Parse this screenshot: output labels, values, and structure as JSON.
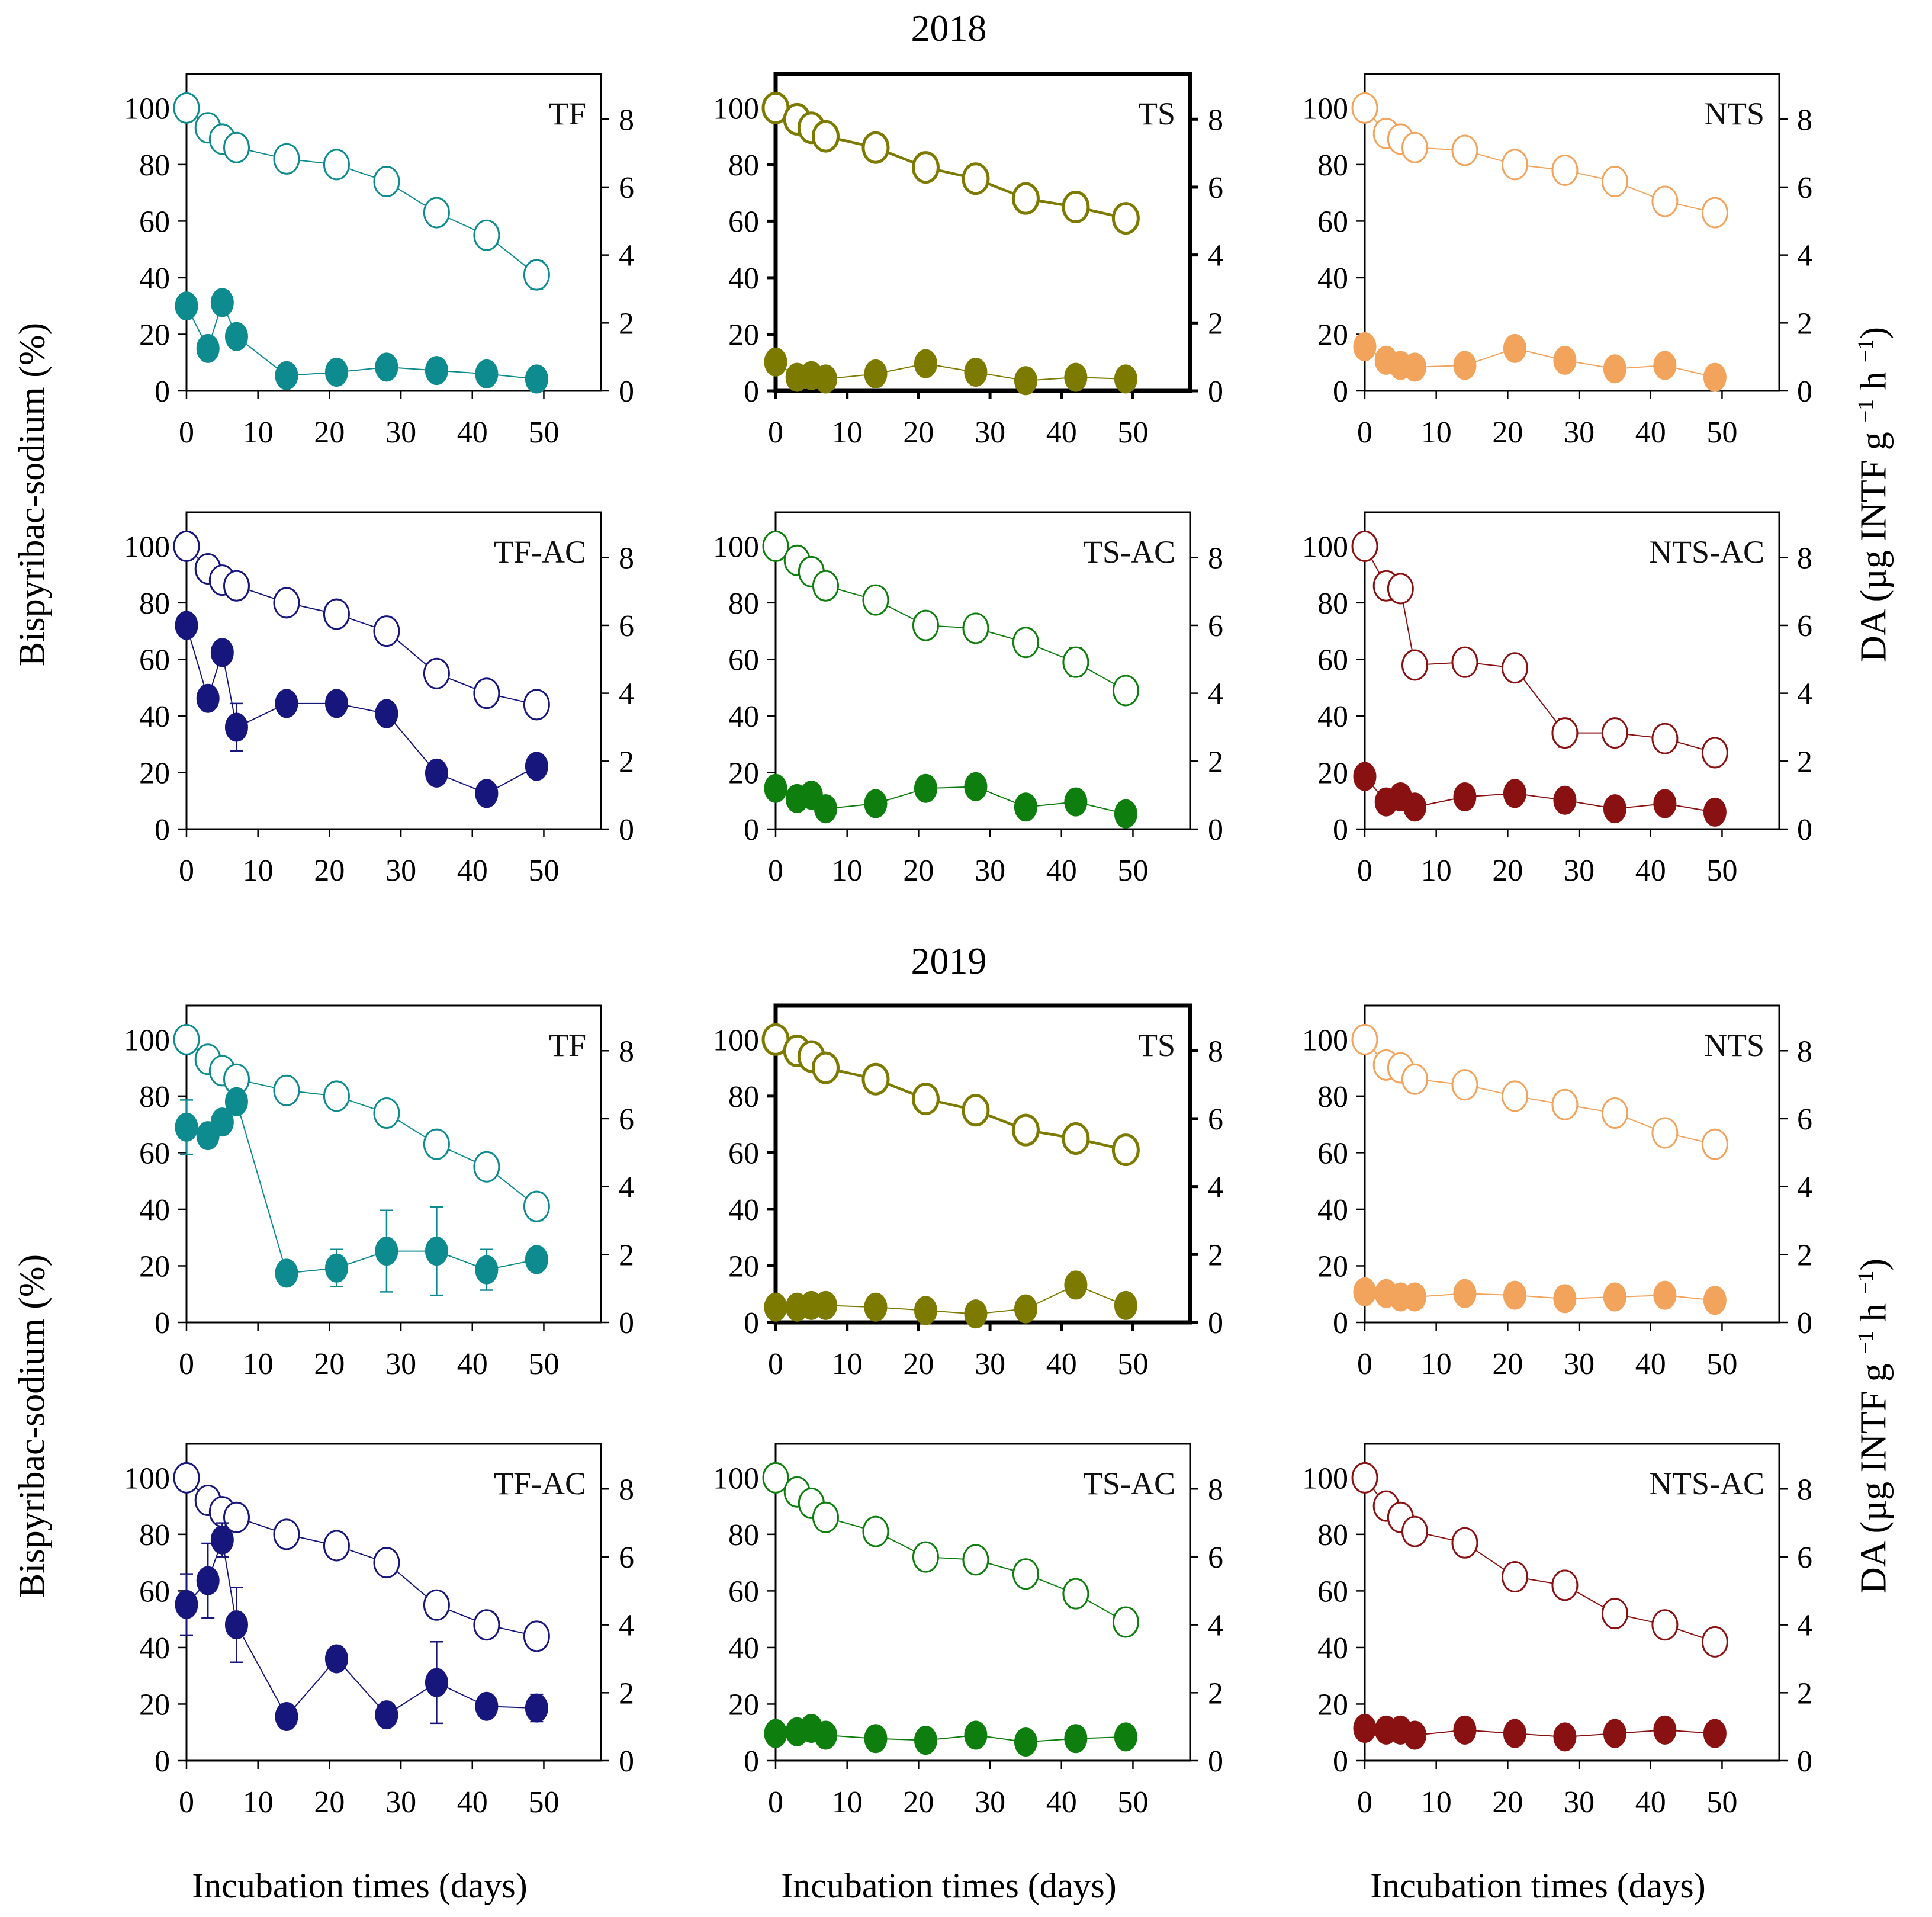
{
  "figure": {
    "x_axis_title": "Incubation times (days)",
    "left_axis_title": "Bispyribac-sodium (%)",
    "right_axis_title": "DA (µg INTF g −1 h −1)"
  },
  "chart_data": {
    "type": "line",
    "x_label": "Incubation times (days)",
    "y_left_label": "Bispyribac-sodium (%)",
    "right_label_parts": {
      "p1": "DA (µg INTF g ",
      "s1": "−1",
      "p2": " h ",
      "s2": "−1",
      "p3": ")"
    },
    "x": [
      0,
      3,
      5,
      7,
      14,
      21,
      28,
      35,
      42,
      49
    ],
    "x_ticks": [
      0,
      10,
      20,
      30,
      40,
      50
    ],
    "y_left_ticks": [
      0,
      20,
      40,
      60,
      80,
      100
    ],
    "y_right_ticks": [
      0,
      2,
      4,
      6,
      8
    ],
    "x_range": [
      0,
      58
    ],
    "y_left_range": [
      0,
      112
    ],
    "y_right_range": [
      0,
      9.33
    ],
    "grid": false,
    "legend": "none",
    "blocks": [
      {
        "year": "2018",
        "panels": [
          {
            "label": "TF",
            "color": "#0E8B8F",
            "thick": false,
            "series": [
              {
                "name": "Bispyribac-sodium",
                "axis": "left",
                "marker": "open",
                "values": [
                  100,
                  93,
                  89,
                  86,
                  82,
                  80,
                  74,
                  63,
                  55,
                  41
                ],
                "errors": [
                  0,
                  0,
                  0,
                  0,
                  0,
                  0,
                  0,
                  0,
                  0,
                  5
                ]
              },
              {
                "name": "DA",
                "axis": "right",
                "marker": "filled",
                "values": [
                  2.5,
                  1.25,
                  2.6,
                  1.6,
                  0.45,
                  0.55,
                  0.7,
                  0.6,
                  0.5,
                  0.35
                ],
                "errors": [
                  0,
                  0,
                  0,
                  0,
                  0,
                  0,
                  0,
                  0,
                  0,
                  0
                ]
              }
            ]
          },
          {
            "label": "TS",
            "color": "#7D7A00",
            "thick": true,
            "series": [
              {
                "name": "Bispyribac-sodium",
                "axis": "left",
                "marker": "open",
                "values": [
                  100,
                  96,
                  93,
                  90,
                  86,
                  79,
                  75,
                  68,
                  65,
                  61
                ],
                "errors": [
                  0,
                  0,
                  0,
                  0,
                  0,
                  0,
                  0,
                  0,
                  0,
                  0
                ]
              },
              {
                "name": "DA",
                "axis": "right",
                "marker": "filled",
                "values": [
                  0.85,
                  0.4,
                  0.45,
                  0.35,
                  0.5,
                  0.8,
                  0.55,
                  0.3,
                  0.4,
                  0.35
                ],
                "errors": [
                  0,
                  0,
                  0,
                  0,
                  0,
                  0,
                  0,
                  0,
                  0,
                  0
                ]
              }
            ]
          },
          {
            "label": "NTS",
            "color": "#F2A35C",
            "thick": false,
            "series": [
              {
                "name": "Bispyribac-sodium",
                "axis": "left",
                "marker": "open",
                "values": [
                  100,
                  91,
                  89,
                  86,
                  85,
                  80,
                  78,
                  74,
                  67,
                  63
                ],
                "errors": [
                  0,
                  0,
                  0,
                  0,
                  0,
                  0,
                  0,
                  0,
                  0,
                  0
                ]
              },
              {
                "name": "DA",
                "axis": "right",
                "marker": "filled",
                "values": [
                  1.3,
                  0.9,
                  0.75,
                  0.7,
                  0.75,
                  1.25,
                  0.9,
                  0.65,
                  0.75,
                  0.4
                ],
                "errors": [
                  0,
                  0,
                  0,
                  0,
                  0,
                  0,
                  0,
                  0,
                  0,
                  0
                ]
              }
            ]
          },
          {
            "label": "TF-AC",
            "color": "#16167D",
            "thick": false,
            "series": [
              {
                "name": "Bispyribac-sodium",
                "axis": "left",
                "marker": "open",
                "values": [
                  100,
                  92,
                  88,
                  86,
                  80,
                  76,
                  70,
                  55,
                  48,
                  44
                ],
                "errors": [
                  0,
                  0,
                  0,
                  0,
                  0,
                  0,
                  0,
                  0,
                  0,
                  0
                ]
              },
              {
                "name": "DA",
                "axis": "right",
                "marker": "filled",
                "values": [
                  6.0,
                  3.85,
                  5.2,
                  3.0,
                  3.7,
                  3.7,
                  3.4,
                  1.65,
                  1.05,
                  1.85
                ],
                "errors": [
                  0,
                  0,
                  0,
                  0.7,
                  0,
                  0,
                  0,
                  0,
                  0,
                  0
                ]
              }
            ]
          },
          {
            "label": "TS-AC",
            "color": "#0E7E0E",
            "thick": false,
            "series": [
              {
                "name": "Bispyribac-sodium",
                "axis": "left",
                "marker": "open",
                "values": [
                  100,
                  95,
                  91,
                  86,
                  81,
                  72,
                  71,
                  66,
                  59,
                  49
                ],
                "errors": [
                  0,
                  0,
                  0,
                  0,
                  0,
                  0,
                  0,
                  4,
                  5,
                  0
                ]
              },
              {
                "name": "DA",
                "axis": "right",
                "marker": "filled",
                "values": [
                  1.2,
                  0.9,
                  1.0,
                  0.6,
                  0.75,
                  1.2,
                  1.25,
                  0.65,
                  0.8,
                  0.45
                ],
                "errors": [
                  0,
                  0,
                  0,
                  0,
                  0,
                  0,
                  0,
                  0,
                  0,
                  0
                ]
              }
            ]
          },
          {
            "label": "NTS-AC",
            "color": "#8A1112",
            "thick": false,
            "series": [
              {
                "name": "Bispyribac-sodium",
                "axis": "left",
                "marker": "open",
                "values": [
                  100,
                  86,
                  85,
                  58,
                  59,
                  57,
                  34,
                  34,
                  32,
                  27
                ],
                "errors": [
                  0,
                  0,
                  0,
                  0,
                  0,
                  0,
                  5,
                  0,
                  0,
                  0
                ]
              },
              {
                "name": "DA",
                "axis": "right",
                "marker": "filled",
                "values": [
                  1.55,
                  0.8,
                  0.95,
                  0.65,
                  0.95,
                  1.05,
                  0.85,
                  0.6,
                  0.75,
                  0.5
                ],
                "errors": [
                  0,
                  0,
                  0,
                  0,
                  0,
                  0,
                  0,
                  0,
                  0,
                  0
                ]
              }
            ]
          }
        ]
      },
      {
        "year": "2019",
        "panels": [
          {
            "label": "TF",
            "color": "#0E8B8F",
            "thick": false,
            "series": [
              {
                "name": "Bispyribac-sodium",
                "axis": "left",
                "marker": "open",
                "values": [
                  100,
                  93,
                  89,
                  86,
                  82,
                  80,
                  74,
                  63,
                  55,
                  41
                ],
                "errors": [
                  0,
                  0,
                  0,
                  0,
                  0,
                  0,
                  0,
                  0,
                  0,
                  5
                ]
              },
              {
                "name": "DA",
                "axis": "right",
                "marker": "filled",
                "values": [
                  5.75,
                  5.5,
                  5.9,
                  6.5,
                  1.45,
                  1.6,
                  2.1,
                  2.1,
                  1.55,
                  1.85
                ],
                "errors": [
                  0.8,
                  0,
                  0,
                  0,
                  0,
                  0.55,
                  1.2,
                  1.3,
                  0.6,
                  0
                ]
              }
            ]
          },
          {
            "label": "TS",
            "color": "#7D7A00",
            "thick": true,
            "series": [
              {
                "name": "Bispyribac-sodium",
                "axis": "left",
                "marker": "open",
                "values": [
                  100,
                  96,
                  94,
                  90,
                  86,
                  79,
                  75,
                  68,
                  65,
                  61
                ],
                "errors": [
                  0,
                  0,
                  0,
                  0,
                  0,
                  0,
                  0,
                  0,
                  0,
                  0
                ]
              },
              {
                "name": "DA",
                "axis": "right",
                "marker": "filled",
                "values": [
                  0.45,
                  0.45,
                  0.5,
                  0.5,
                  0.45,
                  0.35,
                  0.25,
                  0.4,
                  1.1,
                  0.5
                ],
                "errors": [
                  0,
                  0,
                  0,
                  0,
                  0,
                  0,
                  0,
                  0,
                  0.15,
                  0
                ]
              }
            ]
          },
          {
            "label": "NTS",
            "color": "#F2A35C",
            "thick": false,
            "series": [
              {
                "name": "Bispyribac-sodium",
                "axis": "left",
                "marker": "open",
                "values": [
                  100,
                  91,
                  90,
                  86,
                  84,
                  80,
                  77,
                  74,
                  67,
                  63
                ],
                "errors": [
                  0,
                  0,
                  0,
                  0,
                  0,
                  0,
                  0,
                  0,
                  0,
                  0
                ]
              },
              {
                "name": "DA",
                "axis": "right",
                "marker": "filled",
                "values": [
                  0.9,
                  0.85,
                  0.75,
                  0.75,
                  0.85,
                  0.8,
                  0.7,
                  0.75,
                  0.8,
                  0.65
                ],
                "errors": [
                  0,
                  0,
                  0,
                  0,
                  0,
                  0,
                  0,
                  0,
                  0,
                  0
                ]
              }
            ]
          },
          {
            "label": "TF-AC",
            "color": "#16167D",
            "thick": false,
            "series": [
              {
                "name": "Bispyribac-sodium",
                "axis": "left",
                "marker": "open",
                "values": [
                  100,
                  92,
                  88,
                  86,
                  80,
                  76,
                  70,
                  55,
                  48,
                  44
                ],
                "errors": [
                  0,
                  0,
                  0,
                  0,
                  0,
                  0,
                  0,
                  0,
                  0,
                  0
                ]
              },
              {
                "name": "DA",
                "axis": "right",
                "marker": "filled",
                "values": [
                  4.6,
                  5.3,
                  6.5,
                  4.0,
                  1.3,
                  3.0,
                  1.35,
                  2.3,
                  1.6,
                  1.55
                ],
                "errors": [
                  0.9,
                  1.1,
                  0.5,
                  1.1,
                  0,
                  0,
                  0,
                  1.2,
                  0,
                  0.4
                ]
              }
            ]
          },
          {
            "label": "TS-AC",
            "color": "#0E7E0E",
            "thick": false,
            "series": [
              {
                "name": "Bispyribac-sodium",
                "axis": "left",
                "marker": "open",
                "values": [
                  100,
                  95,
                  91,
                  86,
                  81,
                  72,
                  71,
                  66,
                  59,
                  49
                ],
                "errors": [
                  0,
                  0,
                  0,
                  0,
                  0,
                  0,
                  0,
                  4,
                  5,
                  0
                ]
              },
              {
                "name": "DA",
                "axis": "right",
                "marker": "filled",
                "values": [
                  0.8,
                  0.85,
                  0.95,
                  0.75,
                  0.65,
                  0.6,
                  0.75,
                  0.55,
                  0.65,
                  0.7
                ],
                "errors": [
                  0,
                  0,
                  0,
                  0,
                  0,
                  0,
                  0,
                  0,
                  0,
                  0
                ]
              }
            ]
          },
          {
            "label": "NTS-AC",
            "color": "#8A1112",
            "thick": false,
            "series": [
              {
                "name": "Bispyribac-sodium",
                "axis": "left",
                "marker": "open",
                "values": [
                  100,
                  90,
                  86,
                  81,
                  77,
                  65,
                  62,
                  52,
                  48,
                  42
                ],
                "errors": [
                  0,
                  0,
                  0,
                  0,
                  0,
                  0,
                  0,
                  0,
                  0,
                  0
                ]
              },
              {
                "name": "DA",
                "axis": "right",
                "marker": "filled",
                "values": [
                  0.95,
                  0.9,
                  0.9,
                  0.75,
                  0.9,
                  0.8,
                  0.7,
                  0.8,
                  0.9,
                  0.8
                ],
                "errors": [
                  0,
                  0,
                  0,
                  0,
                  0,
                  0,
                  0,
                  0,
                  0,
                  0
                ]
              }
            ]
          }
        ]
      }
    ]
  }
}
